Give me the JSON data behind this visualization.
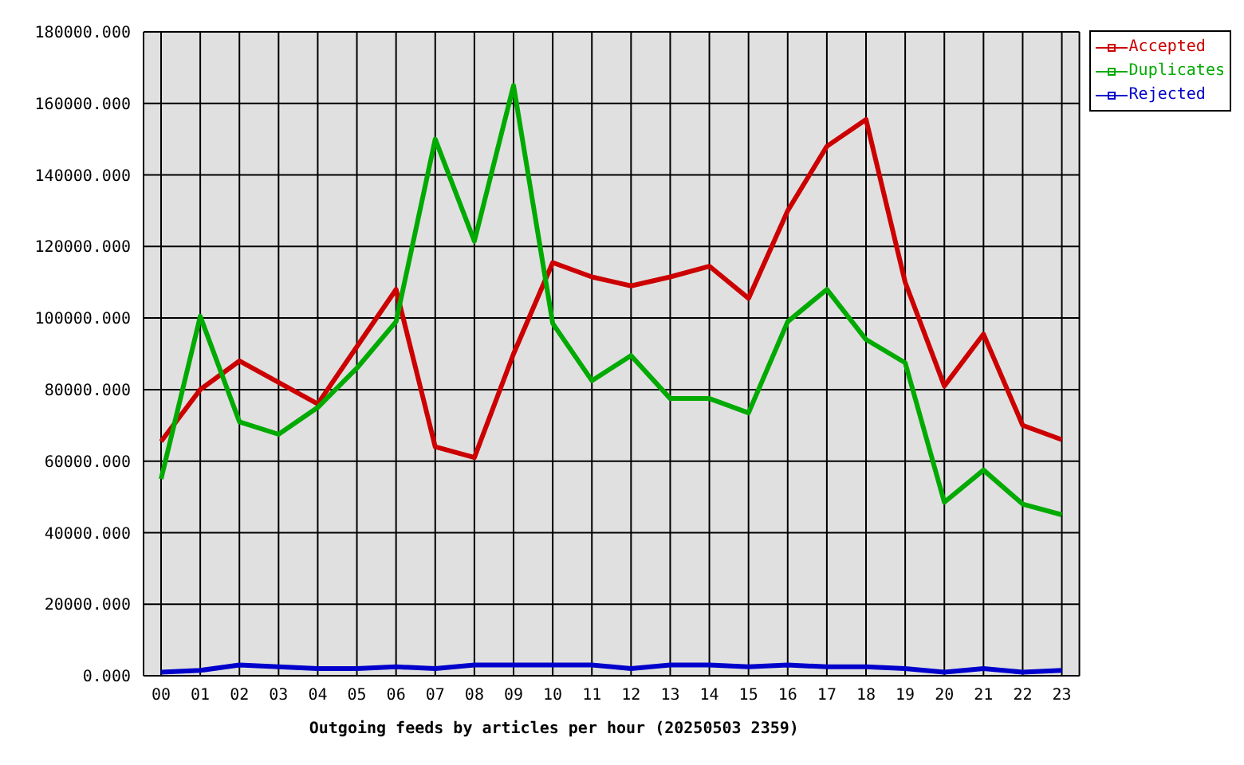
{
  "chart_data": {
    "type": "line",
    "xlabel": "Outgoing feeds by articles per hour (20250503 2359)",
    "categories": [
      "00",
      "01",
      "02",
      "03",
      "04",
      "05",
      "06",
      "07",
      "08",
      "09",
      "10",
      "11",
      "12",
      "13",
      "14",
      "15",
      "16",
      "17",
      "18",
      "19",
      "20",
      "21",
      "22",
      "23"
    ],
    "series": [
      {
        "name": "Accepted",
        "color": "#cc0000",
        "values": [
          65500,
          80000,
          88000,
          82000,
          76000,
          92000,
          108000,
          64000,
          61000,
          90000,
          115500,
          111500,
          109000,
          111500,
          114500,
          105500,
          130000,
          148000,
          155500,
          110000,
          81000,
          95500,
          70000,
          66000
        ]
      },
      {
        "name": "Duplicates",
        "color": "#00aa00",
        "values": [
          55000,
          100500,
          71000,
          67500,
          75000,
          86000,
          99000,
          150000,
          121500,
          165000,
          98500,
          82500,
          89500,
          77500,
          77500,
          73500,
          99000,
          108000,
          94000,
          87500,
          48500,
          57500,
          48000,
          45000
        ]
      },
      {
        "name": "Rejected",
        "color": "#0000cc",
        "values": [
          1000,
          1500,
          3000,
          2500,
          2000,
          2000,
          2500,
          2000,
          3000,
          3000,
          3000,
          3000,
          2000,
          3000,
          3000,
          2500,
          3000,
          2500,
          2500,
          2000,
          1000,
          2000,
          1000,
          1500
        ]
      }
    ],
    "ylim": [
      0,
      180000
    ],
    "yticks": [
      {
        "value": 0,
        "label": "0.000"
      },
      {
        "value": 20000,
        "label": "20000.000"
      },
      {
        "value": 40000,
        "label": "40000.000"
      },
      {
        "value": 60000,
        "label": "60000.000"
      },
      {
        "value": 80000,
        "label": "80000.000"
      },
      {
        "value": 100000,
        "label": "100000.000"
      },
      {
        "value": 120000,
        "label": "120000.000"
      },
      {
        "value": 140000,
        "label": "140000.000"
      },
      {
        "value": 160000,
        "label": "160000.000"
      },
      {
        "value": 180000,
        "label": "180000.000"
      }
    ],
    "grid": true,
    "legend": "top right",
    "marker": "none",
    "line_style": "solid"
  }
}
